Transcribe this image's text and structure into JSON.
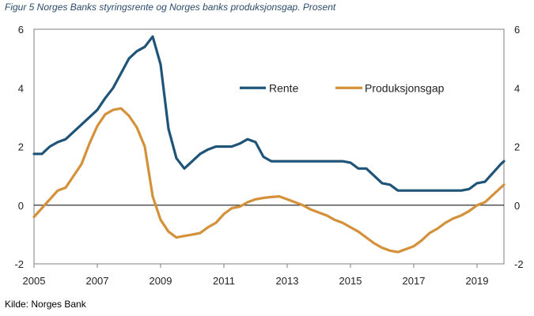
{
  "title": "Figur 5 Norges Banks styringsrente og Norges banks produksjonsgap. Prosent",
  "source": "Kilde: Norges Bank",
  "chart_data": {
    "type": "line",
    "title": "Figur 5 Norges Banks styringsrente og Norges banks produksjonsgap. Prosent",
    "xlabel": "",
    "ylabel": "",
    "xlim": [
      2005.0,
      2019.85
    ],
    "ylim": [
      -2,
      6
    ],
    "x_ticks": [
      "2005",
      "2007",
      "2009",
      "2011",
      "2013",
      "2015",
      "2017",
      "2019"
    ],
    "y_ticks": [
      "6",
      "4",
      "2",
      "0",
      "-2"
    ],
    "grid": false,
    "legend": "upper-right, inside plot",
    "series": [
      {
        "name": "Rente",
        "color": "#1f5478",
        "points": [
          [
            2005.0,
            1.75
          ],
          [
            2005.25,
            1.75
          ],
          [
            2005.5,
            2.0
          ],
          [
            2005.75,
            2.15
          ],
          [
            2006.0,
            2.25
          ],
          [
            2006.25,
            2.5
          ],
          [
            2006.5,
            2.75
          ],
          [
            2006.75,
            3.0
          ],
          [
            2007.0,
            3.25
          ],
          [
            2007.25,
            3.65
          ],
          [
            2007.5,
            4.0
          ],
          [
            2007.75,
            4.5
          ],
          [
            2008.0,
            5.0
          ],
          [
            2008.25,
            5.25
          ],
          [
            2008.5,
            5.4
          ],
          [
            2008.75,
            5.75
          ],
          [
            2009.0,
            4.8
          ],
          [
            2009.25,
            2.6
          ],
          [
            2009.5,
            1.6
          ],
          [
            2009.75,
            1.25
          ],
          [
            2010.0,
            1.5
          ],
          [
            2010.25,
            1.75
          ],
          [
            2010.5,
            1.9
          ],
          [
            2010.75,
            2.0
          ],
          [
            2011.0,
            2.0
          ],
          [
            2011.25,
            2.0
          ],
          [
            2011.5,
            2.1
          ],
          [
            2011.75,
            2.25
          ],
          [
            2012.0,
            2.15
          ],
          [
            2012.25,
            1.65
          ],
          [
            2012.5,
            1.5
          ],
          [
            2012.75,
            1.5
          ],
          [
            2013.0,
            1.5
          ],
          [
            2013.5,
            1.5
          ],
          [
            2014.0,
            1.5
          ],
          [
            2014.5,
            1.5
          ],
          [
            2014.75,
            1.5
          ],
          [
            2015.0,
            1.45
          ],
          [
            2015.25,
            1.25
          ],
          [
            2015.5,
            1.25
          ],
          [
            2015.75,
            1.0
          ],
          [
            2016.0,
            0.75
          ],
          [
            2016.25,
            0.7
          ],
          [
            2016.5,
            0.5
          ],
          [
            2016.75,
            0.5
          ],
          [
            2017.0,
            0.5
          ],
          [
            2017.5,
            0.5
          ],
          [
            2018.0,
            0.5
          ],
          [
            2018.5,
            0.5
          ],
          [
            2018.75,
            0.55
          ],
          [
            2019.0,
            0.75
          ],
          [
            2019.25,
            0.8
          ],
          [
            2019.5,
            1.1
          ],
          [
            2019.75,
            1.4
          ],
          [
            2019.85,
            1.5
          ]
        ]
      },
      {
        "name": "Produksjonsgap",
        "color": "#d4913a",
        "points": [
          [
            2005.0,
            -0.4
          ],
          [
            2005.25,
            -0.1
          ],
          [
            2005.5,
            0.2
          ],
          [
            2005.75,
            0.5
          ],
          [
            2006.0,
            0.6
          ],
          [
            2006.25,
            1.0
          ],
          [
            2006.5,
            1.4
          ],
          [
            2006.75,
            2.1
          ],
          [
            2007.0,
            2.7
          ],
          [
            2007.25,
            3.1
          ],
          [
            2007.5,
            3.25
          ],
          [
            2007.75,
            3.3
          ],
          [
            2008.0,
            3.05
          ],
          [
            2008.25,
            2.65
          ],
          [
            2008.5,
            2.0
          ],
          [
            2008.75,
            0.3
          ],
          [
            2009.0,
            -0.5
          ],
          [
            2009.25,
            -0.9
          ],
          [
            2009.5,
            -1.1
          ],
          [
            2009.75,
            -1.05
          ],
          [
            2010.0,
            -1.0
          ],
          [
            2010.25,
            -0.95
          ],
          [
            2010.5,
            -0.75
          ],
          [
            2010.75,
            -0.6
          ],
          [
            2011.0,
            -0.3
          ],
          [
            2011.25,
            -0.1
          ],
          [
            2011.5,
            -0.05
          ],
          [
            2011.75,
            0.1
          ],
          [
            2012.0,
            0.2
          ],
          [
            2012.25,
            0.25
          ],
          [
            2012.5,
            0.28
          ],
          [
            2012.75,
            0.3
          ],
          [
            2013.0,
            0.2
          ],
          [
            2013.25,
            0.1
          ],
          [
            2013.5,
            0.0
          ],
          [
            2013.75,
            -0.15
          ],
          [
            2014.0,
            -0.25
          ],
          [
            2014.25,
            -0.35
          ],
          [
            2014.5,
            -0.5
          ],
          [
            2014.75,
            -0.6
          ],
          [
            2015.0,
            -0.75
          ],
          [
            2015.25,
            -0.9
          ],
          [
            2015.5,
            -1.1
          ],
          [
            2015.75,
            -1.3
          ],
          [
            2016.0,
            -1.45
          ],
          [
            2016.25,
            -1.55
          ],
          [
            2016.5,
            -1.6
          ],
          [
            2016.75,
            -1.5
          ],
          [
            2017.0,
            -1.4
          ],
          [
            2017.25,
            -1.2
          ],
          [
            2017.5,
            -0.95
          ],
          [
            2017.75,
            -0.8
          ],
          [
            2018.0,
            -0.6
          ],
          [
            2018.25,
            -0.45
          ],
          [
            2018.5,
            -0.35
          ],
          [
            2018.75,
            -0.2
          ],
          [
            2019.0,
            0.0
          ],
          [
            2019.25,
            0.1
          ],
          [
            2019.5,
            0.35
          ],
          [
            2019.75,
            0.6
          ],
          [
            2019.85,
            0.7
          ]
        ]
      }
    ]
  }
}
